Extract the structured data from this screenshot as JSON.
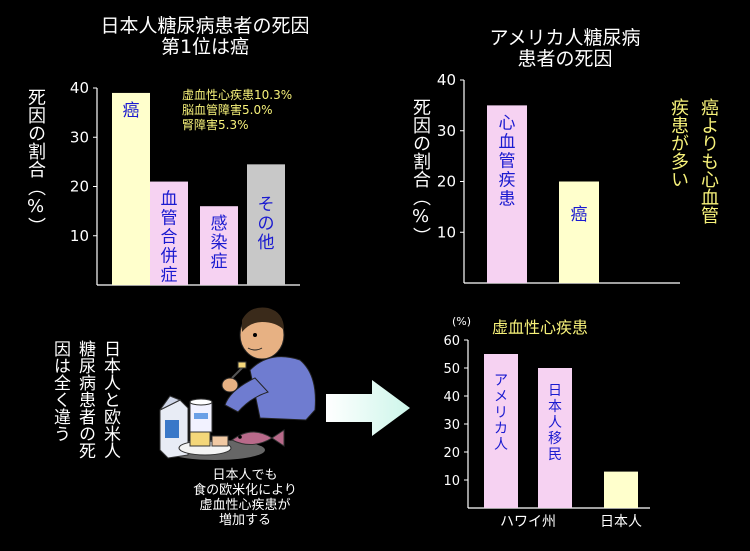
{
  "charts": {
    "japan": {
      "title_line1": "日本人糖尿病患者の死因",
      "title_line2": "第1位は癌",
      "ylabel": "死因の割合（%）",
      "note_lines": [
        "虚血性心疾患10.3%",
        "脳血管障害5.0%",
        "腎障害5.3%"
      ]
    },
    "usa": {
      "title_line1": "アメリカ人糖尿病",
      "title_line2": "患者の死因",
      "ylabel": "死因の割合（%）",
      "side_note": [
        "癌よりも心血管",
        "疾患が多い"
      ]
    },
    "ihd": {
      "title": "虚血性心疾患",
      "unit": "(%)"
    }
  },
  "middle": {
    "vertical_text": [
      "日本人と欧米人",
      "糖尿病患者の死",
      "因は全く違う"
    ],
    "caption_lines": [
      "日本人でも",
      "食の欧米化により",
      "虚血性心疾患が",
      "増加する"
    ],
    "illustration_icon": "man-eating-western-food-illustration",
    "arrow_icon": "right-arrow-icon"
  },
  "colors": {
    "yellow_bar": "#ffffcc",
    "pink_bar": "#f6d2f2",
    "gray_bar": "#c8c8c8",
    "bar_text": "#1a1ad0",
    "note_yellow": "#f7f27a",
    "arrow": "#d8fbf2"
  },
  "chart_data": [
    {
      "type": "bar",
      "title": "日本人糖尿病患者の死因 第1位は癌",
      "ylabel": "死因の割合（%）",
      "ylim": [
        0,
        40
      ],
      "yticks": [
        10,
        20,
        30,
        40
      ],
      "categories": [
        "癌",
        "血管合併症",
        "感染症",
        "その他"
      ],
      "values": [
        39,
        21,
        16,
        24.5
      ],
      "bar_colors": [
        "#ffffcc",
        "#f6d2f2",
        "#f6d2f2",
        "#c8c8c8"
      ]
    },
    {
      "type": "bar",
      "title": "アメリカ人糖尿病 患者の死因",
      "ylabel": "死因の割合（%）",
      "ylim": [
        0,
        40
      ],
      "yticks": [
        10,
        20,
        30,
        40
      ],
      "categories": [
        "心血管疾患",
        "癌"
      ],
      "values": [
        35,
        20
      ],
      "bar_colors": [
        "#f6d2f2",
        "#ffffcc"
      ]
    },
    {
      "type": "bar",
      "title": "虚血性心疾患",
      "ylabel": "(%)",
      "ylim": [
        0,
        60
      ],
      "yticks": [
        10,
        20,
        30,
        40,
        50,
        60
      ],
      "categories": [
        "アメリカ人",
        "日本人移民",
        "日本人"
      ],
      "group_labels": [
        "ハワイ州",
        "日本人"
      ],
      "values": [
        55,
        50,
        13
      ],
      "bar_colors": [
        "#f6d2f2",
        "#f6d2f2",
        "#ffffcc"
      ]
    }
  ]
}
